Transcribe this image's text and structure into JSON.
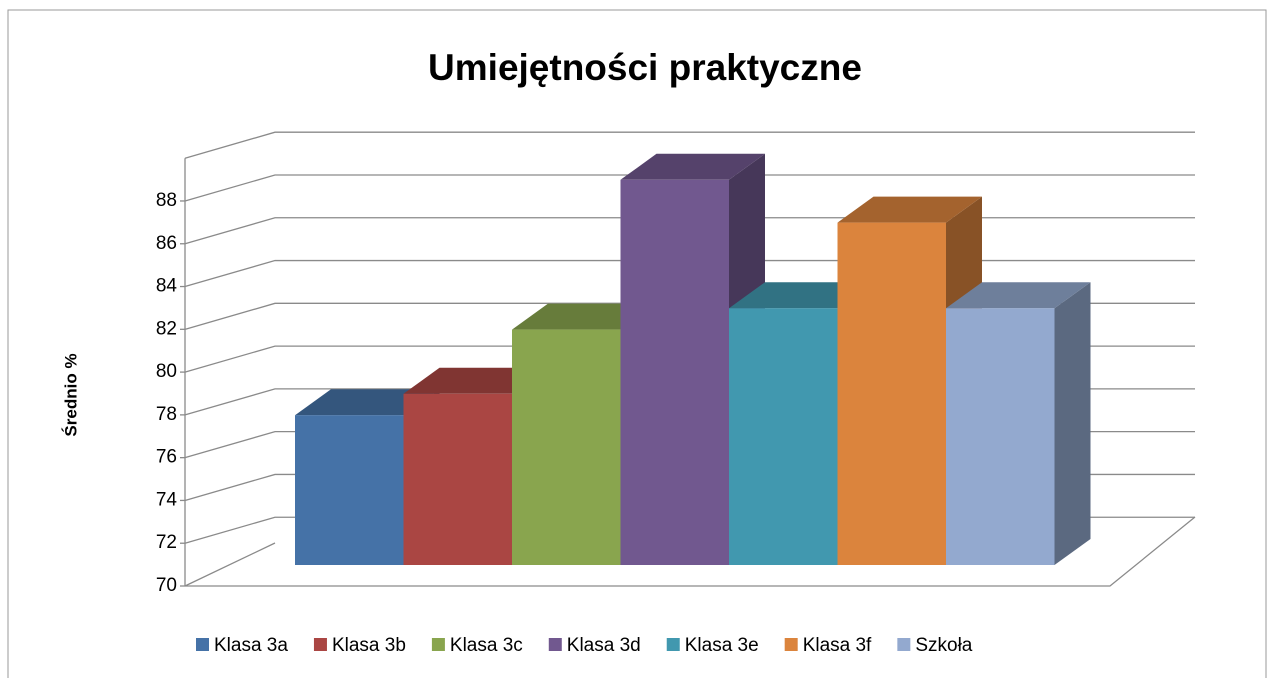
{
  "chart_data": {
    "type": "bar3d",
    "title": "Umiejętności praktyczne",
    "y_label": "Średnio %",
    "series": [
      {
        "name": "Klasa 3a",
        "color": "#4572a7",
        "values": [
          77
        ]
      },
      {
        "name": "Klasa 3b",
        "color": "#aa4643",
        "values": [
          78
        ]
      },
      {
        "name": "Klasa 3c",
        "color": "#89a54e",
        "values": [
          81
        ]
      },
      {
        "name": "Klasa 3d",
        "color": "#71588f",
        "values": [
          88
        ]
      },
      {
        "name": "Klasa 3e",
        "color": "#4198af",
        "values": [
          82
        ]
      },
      {
        "name": "Klasa 3f",
        "color": "#db843d",
        "values": [
          86
        ]
      },
      {
        "name": "Szkoła",
        "color": "#93a9cf",
        "values": [
          82
        ]
      }
    ],
    "ylim": [
      70,
      90
    ],
    "yticks": [
      70,
      72,
      74,
      76,
      78,
      80,
      82,
      84,
      86,
      88
    ],
    "grid": true
  }
}
